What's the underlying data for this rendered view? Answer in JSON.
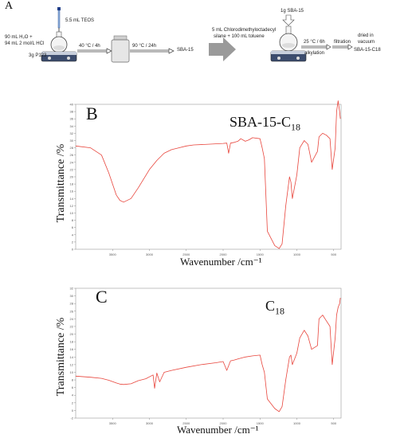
{
  "scheme": {
    "panel_label": "A",
    "teos": "5.5 mL TEOS",
    "reagents_line1": "90 mL H₂O +",
    "reagents_line2": "94 mL 2 mol/L HCl",
    "p123": "3g P123",
    "step1": "40 °C / 4h",
    "step2": "90 °C / 24h",
    "product1": "SBA-15",
    "sba15_input": "1g SBA-15",
    "silane_line1": "5 mL Chlorodimethyloctadecyl",
    "silane_line2": "silane + 100 mL toluene",
    "step3": "25 °C / 6h",
    "alkylation": "alkylation",
    "filtration": "filtration",
    "dried_line1": "dried in",
    "dried_line2": "vacuum",
    "product2": "SBA-15-C18"
  },
  "chart_data": [
    {
      "type": "line",
      "panel": "B",
      "title_main": "SBA-15-C",
      "title_sub": "18",
      "xlabel": "Wavenumber /cm⁻¹",
      "ylabel": "Transmittance /%",
      "x_ticks": [
        "3500",
        "3000",
        "2500",
        "2000",
        "1500",
        "1000",
        "500"
      ],
      "y_ticks": [
        "40",
        "38",
        "36",
        "34",
        "32",
        "30",
        "28",
        "26",
        "24",
        "22",
        "20",
        "18",
        "16",
        "14",
        "12",
        "10",
        "8",
        "6",
        "4",
        "2",
        "0"
      ],
      "xlim": [
        4000,
        400
      ],
      "ylim": [
        0,
        40
      ],
      "series": [
        {
          "color": "#e8453c",
          "x": [
            4000,
            3800,
            3650,
            3550,
            3450,
            3400,
            3350,
            3250,
            3150,
            3000,
            2900,
            2800,
            2700,
            2600,
            2500,
            2400,
            2200,
            2000,
            1950,
            1925,
            1900,
            1850,
            1800,
            1760,
            1700,
            1650,
            1600,
            1500,
            1470,
            1440,
            1400,
            1300,
            1240,
            1200,
            1150,
            1100,
            1080,
            1060,
            1000,
            960,
            900,
            850,
            800,
            720,
            700,
            650,
            600,
            550,
            520,
            480,
            460,
            440,
            420,
            410
          ],
          "y": [
            28.5,
            28,
            26,
            21,
            15,
            13.5,
            13,
            14,
            17,
            22,
            24.5,
            26.5,
            27.5,
            28,
            28.5,
            28.8,
            29,
            29.2,
            29.3,
            26.5,
            29.3,
            29.5,
            29.8,
            30.5,
            29.8,
            30.2,
            30.8,
            30.5,
            28,
            25,
            5,
            1,
            0.2,
            1.5,
            12,
            20,
            18.5,
            14,
            20.5,
            28,
            30,
            29,
            24,
            27,
            31,
            32,
            31.5,
            30.5,
            22,
            28,
            38,
            41,
            38,
            36
          ]
        }
      ]
    },
    {
      "type": "line",
      "panel": "C",
      "title_main": "C",
      "title_sub": "18",
      "xlabel": "Wavenumber /cm⁻¹",
      "ylabel": "Transmittance /%",
      "x_ticks": [
        "3500",
        "3000",
        "2500",
        "2000",
        "1500",
        "1000",
        "500"
      ],
      "y_ticks": [
        "32",
        "30",
        "28",
        "26",
        "24",
        "22",
        "20",
        "18",
        "16",
        "14",
        "12",
        "10",
        "8",
        "6",
        "4",
        "2",
        "0",
        "-2"
      ],
      "xlim": [
        4000,
        400
      ],
      "ylim": [
        -2,
        32
      ],
      "series": [
        {
          "color": "#e8453c",
          "x": [
            4000,
            3800,
            3650,
            3550,
            3450,
            3400,
            3350,
            3250,
            3150,
            3050,
            2950,
            2930,
            2900,
            2860,
            2800,
            2700,
            2500,
            2300,
            2100,
            2000,
            1950,
            1900,
            1850,
            1800,
            1700,
            1600,
            1500,
            1470,
            1440,
            1400,
            1300,
            1240,
            1200,
            1150,
            1100,
            1080,
            1060,
            1000,
            960,
            900,
            850,
            800,
            720,
            700,
            650,
            600,
            550,
            520,
            480,
            460,
            440,
            420,
            410
          ],
          "y": [
            9,
            8.7,
            8.4,
            7.9,
            7.2,
            6.9,
            6.8,
            7,
            7.8,
            8.3,
            9.3,
            5.8,
            9.8,
            7.5,
            10,
            10.5,
            11.3,
            12,
            12.5,
            12.8,
            10.5,
            13,
            13.2,
            13.5,
            14,
            14.3,
            14.5,
            12,
            10,
            3,
            0.5,
            -0.3,
            1,
            8,
            14,
            14.5,
            12,
            15,
            19,
            21,
            19.5,
            16,
            17,
            24,
            25,
            23.5,
            22,
            12,
            19,
            25,
            27,
            28,
            29.5
          ]
        }
      ]
    }
  ]
}
